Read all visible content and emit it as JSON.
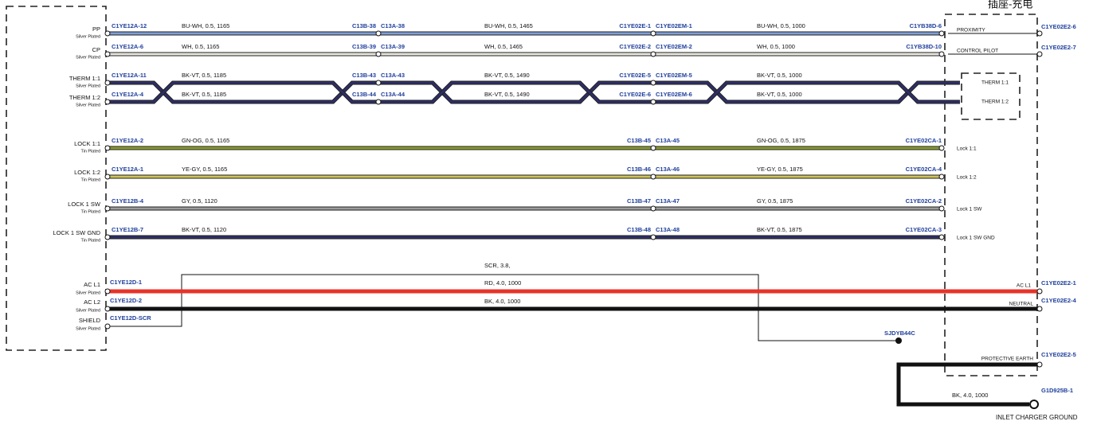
{
  "header": {
    "title": "插座-充电"
  },
  "rows": [
    {
      "pin": "PP",
      "plating": "Silver Plated",
      "color": "#7f9fd6",
      "start": "C1YE12A-12",
      "specs": [
        "BU-WH, 0.5, 1165",
        "BU-WH, 0.5, 1465",
        "BU-WH, 0.5, 1000"
      ],
      "joints": [
        [
          "C13B-38",
          "C13A-38"
        ],
        [
          "C1YE02E-1",
          "C1YE02EM-1"
        ]
      ],
      "end": "C1YB38D-6",
      "function": "PROXIMITY",
      "terminal": "C1YE02E2-6"
    },
    {
      "pin": "CP",
      "plating": "Silver Plated",
      "color": "#e6e6dc",
      "start": "C1YE12A-6",
      "specs": [
        "WH, 0.5, 1165",
        "WH, 0.5, 1465",
        "WH, 0.5, 1000"
      ],
      "joints": [
        [
          "C13B-39",
          "C13A-39"
        ],
        [
          "C1YE02E-2",
          "C1YE02EM-2"
        ]
      ],
      "end": "C1YB38D-10",
      "function": "CONTROL PILOT",
      "terminal": "C1YE02E2-7"
    },
    {
      "pin": "THERM 1:1",
      "plating": "Silver Plated",
      "color": "#2e2e66",
      "start": "C1YE12A-11",
      "specs": [
        "BK-VT, 0.5, 1185",
        "BK-VT, 0.5, 1490",
        "BK-VT, 0.5, 1000"
      ],
      "joints": [
        [
          "C13B-43",
          "C13A-43"
        ],
        [
          "C1YE02E-5",
          "C1YE02EM-5"
        ]
      ],
      "function": "THERM 1:1"
    },
    {
      "pin": "THERM 1:2",
      "plating": "Silver Plated",
      "color": "#2e2e66",
      "start": "C1YE12A-4",
      "specs": [
        "BK-VT, 0.5, 1185",
        "BK-VT, 0.5, 1490",
        "BK-VT, 0.5, 1000"
      ],
      "joints": [
        [
          "C13B-44",
          "C13A-44"
        ],
        [
          "C1YE02E-6",
          "C1YE02EM-6"
        ]
      ],
      "function": "THERM 1:2"
    },
    {
      "pin": "LOCK 1:1",
      "plating": "Tin Plated",
      "color": "#8c9c2c",
      "start": "C1YE12A-2",
      "specs": [
        "GN-OG, 0.5, 1165",
        "GN-OG, 0.5, 1875"
      ],
      "joints": [
        [
          "C13B-45",
          "C13A-45"
        ]
      ],
      "end": "C1YE02CA-1",
      "function": "Lock 1:1"
    },
    {
      "pin": "LOCK 1:2",
      "plating": "Tin Plated",
      "color": "#cdc35a",
      "start": "C1YE12A-1",
      "specs": [
        "YE-GY, 0.5, 1165",
        "YE-GY, 0.5, 1875"
      ],
      "joints": [
        [
          "C13B-46",
          "C13A-46"
        ]
      ],
      "end": "C1YE02CA-4",
      "function": "Lock 1:2"
    },
    {
      "pin": "LOCK 1 SW",
      "plating": "Tin Plated",
      "color": "#9c9c9c",
      "start": "C1YE12B-4",
      "specs": [
        "GY, 0.5, 1120",
        "GY, 0.5, 1875"
      ],
      "joints": [
        [
          "C13B-47",
          "C13A-47"
        ]
      ],
      "end": "C1YE02CA-2",
      "function": "Lock 1 SW"
    },
    {
      "pin": "LOCK 1 SW GND",
      "plating": "Tin Plated",
      "color": "#2e2e66",
      "start": "C1YE12B-7",
      "specs": [
        "BK-VT, 0.5, 1120",
        "BK-VT, 0.5, 1875"
      ],
      "joints": [
        [
          "C13B-48",
          "C13A-48"
        ]
      ],
      "end": "C1YE02CA-3",
      "function": "Lock 1 SW GND"
    }
  ],
  "ac": {
    "pins": [
      {
        "pin": "AC L1",
        "plating": "Silver Plated",
        "start": "C1YE12D-1"
      },
      {
        "pin": "AC L2",
        "plating": "Silver Plated",
        "start": "C1YE12D-2"
      },
      {
        "pin": "SHIELD",
        "plating": "Silver Plated",
        "start": "C1YE12D-SCR"
      }
    ],
    "shield_spec": "SCR, 3.8,",
    "l1_spec": "RD, 4.0, 1000",
    "l2_spec": "BK, 4.0, 1000",
    "shield_end": "SJDYB44C",
    "l1_function": "AC L1",
    "l1_terminal": "C1YE02E2-1",
    "l2_function": "NEUTRAL",
    "l2_terminal": "C1YE02E2-4",
    "earth_function": "PROTECTIVE EARTH",
    "earth_terminal": "C1YE02E2-5",
    "ground_spec": "BK, 4.0, 1000",
    "ground_connector": "G1D925B-1",
    "ground_label": "INLET CHARGER GROUND"
  }
}
